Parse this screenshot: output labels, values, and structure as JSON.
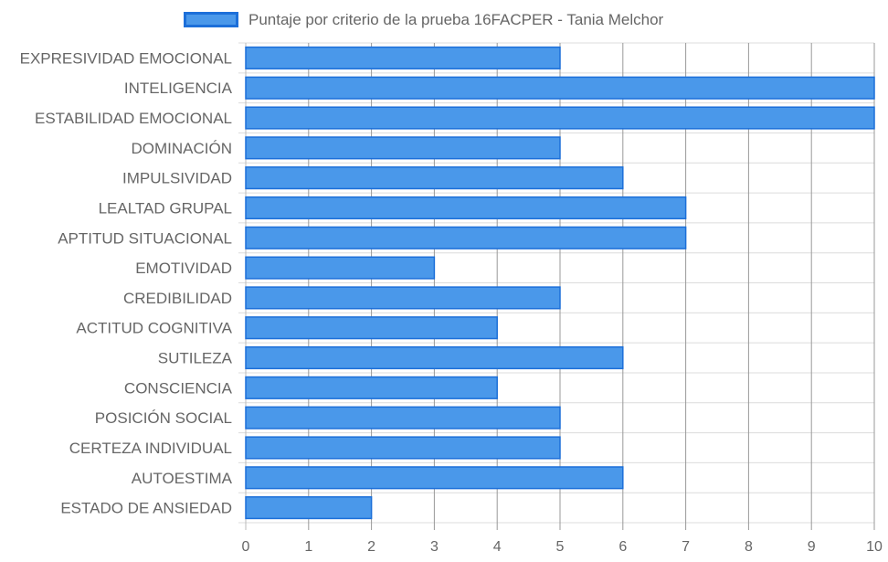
{
  "colors": {
    "bar_fill": "#4a98ea",
    "bar_border": "#1c6fd9",
    "grid": "#dcdcdc",
    "grid_vertical": "#999999",
    "axis_text": "#666666"
  },
  "chart_data": {
    "type": "bar",
    "orientation": "horizontal",
    "title": "",
    "xlabel": "",
    "ylabel": "",
    "xlim": [
      0,
      10
    ],
    "x_ticks": [
      "0",
      "1",
      "2",
      "3",
      "4",
      "5",
      "6",
      "7",
      "8",
      "9",
      "10"
    ],
    "grid": true,
    "legend_position": "top",
    "categories": [
      "EXPRESIVIDAD EMOCIONAL",
      "INTELIGENCIA",
      "ESTABILIDAD EMOCIONAL",
      "DOMINACIÓN",
      "IMPULSIVIDAD",
      "LEALTAD GRUPAL",
      "APTITUD SITUACIONAL",
      "EMOTIVIDAD",
      "CREDIBILIDAD",
      "ACTITUD COGNITIVA",
      "SUTILEZA",
      "CONSCIENCIA",
      "POSICIÓN SOCIAL",
      "CERTEZA INDIVIDUAL",
      "AUTOESTIMA",
      "ESTADO DE ANSIEDAD"
    ],
    "series": [
      {
        "name": "Puntaje por criterio de la prueba 16FACPER - Tania Melchor",
        "values": [
          5,
          10,
          10,
          5,
          6,
          7,
          7,
          3,
          5,
          4,
          6,
          4,
          5,
          5,
          6,
          2
        ]
      }
    ]
  }
}
